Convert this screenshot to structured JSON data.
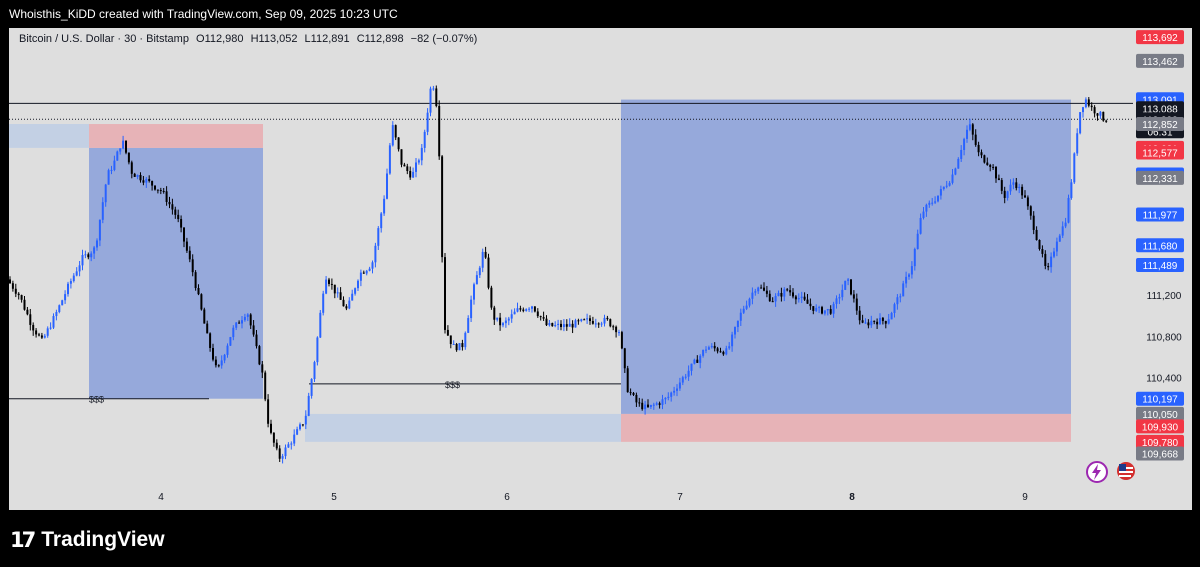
{
  "header": {
    "title": "Whoisthis_KiDD created with TradingView.com, Sep 09, 2025 10:23 UTC"
  },
  "legend": {
    "symbol": "Bitcoin / U.S. Dollar · 30 · Bitstamp",
    "open": "O112,980",
    "high": "H113,052",
    "low": "L112,891",
    "close": "C112,898",
    "change": "−82 (−0.07%)"
  },
  "brand": {
    "name": "TradingView"
  },
  "chart_data": {
    "type": "candlestick",
    "symbol": "BTCUSD",
    "interval": "30",
    "exchange": "Bitstamp",
    "x_tick_labels": [
      {
        "label": "4",
        "t": 152
      },
      {
        "label": "5",
        "t": 325
      },
      {
        "label": "6",
        "t": 498
      },
      {
        "label": "7",
        "t": 671
      },
      {
        "label": "8",
        "t": 843
      },
      {
        "label": "9",
        "t": 1016
      }
    ],
    "y_tick_labels": [
      111200,
      110800,
      110400
    ],
    "ylim": [
      109450,
      113780
    ],
    "candle_colors": {
      "up": "#2962ff",
      "down": "#000000"
    },
    "price_path": [
      [
        0,
        111350
      ],
      [
        12,
        111200
      ],
      [
        25,
        110900
      ],
      [
        35,
        110750
      ],
      [
        48,
        111000
      ],
      [
        62,
        111300
      ],
      [
        75,
        111550
      ],
      [
        88,
        111650
      ],
      [
        100,
        112350
      ],
      [
        108,
        112500
      ],
      [
        115,
        112700
      ],
      [
        125,
        112380
      ],
      [
        140,
        112300
      ],
      [
        155,
        112200
      ],
      [
        170,
        111950
      ],
      [
        185,
        111450
      ],
      [
        200,
        110800
      ],
      [
        210,
        110450
      ],
      [
        225,
        110850
      ],
      [
        240,
        111050
      ],
      [
        255,
        110450
      ],
      [
        262,
        109900
      ],
      [
        272,
        109620
      ],
      [
        285,
        109800
      ],
      [
        298,
        110000
      ],
      [
        308,
        110600
      ],
      [
        318,
        111400
      ],
      [
        330,
        111200
      ],
      [
        340,
        111050
      ],
      [
        352,
        111400
      ],
      [
        365,
        111500
      ],
      [
        378,
        112200
      ],
      [
        385,
        112850
      ],
      [
        395,
        112450
      ],
      [
        405,
        112350
      ],
      [
        415,
        112600
      ],
      [
        425,
        113300
      ],
      [
        431,
        112950
      ],
      [
        437,
        110900
      ],
      [
        446,
        110700
      ],
      [
        455,
        110700
      ],
      [
        465,
        111200
      ],
      [
        477,
        111650
      ],
      [
        485,
        111000
      ],
      [
        495,
        110900
      ],
      [
        510,
        111050
      ],
      [
        525,
        111100
      ],
      [
        540,
        110900
      ],
      [
        560,
        110900
      ],
      [
        580,
        110950
      ],
      [
        600,
        110950
      ],
      [
        612,
        110850
      ],
      [
        620,
        110300
      ],
      [
        630,
        110150
      ],
      [
        640,
        110100
      ],
      [
        660,
        110200
      ],
      [
        680,
        110450
      ],
      [
        700,
        110700
      ],
      [
        720,
        110650
      ],
      [
        735,
        111050
      ],
      [
        750,
        111300
      ],
      [
        765,
        111150
      ],
      [
        780,
        111250
      ],
      [
        795,
        111150
      ],
      [
        810,
        111050
      ],
      [
        825,
        111050
      ],
      [
        840,
        111350
      ],
      [
        855,
        110900
      ],
      [
        865,
        110950
      ],
      [
        880,
        110950
      ],
      [
        895,
        111250
      ],
      [
        905,
        111500
      ],
      [
        915,
        112000
      ],
      [
        930,
        112150
      ],
      [
        945,
        112350
      ],
      [
        955,
        112650
      ],
      [
        962,
        112850
      ],
      [
        972,
        112550
      ],
      [
        985,
        112450
      ],
      [
        997,
        112150
      ],
      [
        1007,
        112300
      ],
      [
        1017,
        112150
      ],
      [
        1027,
        111850
      ],
      [
        1040,
        111400
      ],
      [
        1050,
        111750
      ],
      [
        1058,
        111900
      ],
      [
        1065,
        112350
      ],
      [
        1072,
        112950
      ],
      [
        1078,
        113100
      ],
      [
        1085,
        113000
      ],
      [
        1092,
        112950
      ],
      [
        1097,
        112898
      ]
    ],
    "horizontal_lines": [
      {
        "kind": "solid",
        "price": 113052,
        "label": ""
      },
      {
        "kind": "dotted",
        "price": 112898,
        "label": ""
      },
      {
        "kind": "segment",
        "price": 110197,
        "t_start": 0,
        "t_end": 200,
        "label": "$$$"
      },
      {
        "kind": "segment",
        "price": 110340,
        "t_start": 300,
        "t_end": 612,
        "label": "$$$"
      }
    ],
    "position_tools": [
      {
        "entry": 112621,
        "stop": 112852,
        "target": 110197,
        "t_start": 80,
        "t_end": 254,
        "side": "short"
      },
      {
        "entry": 110050,
        "stop": 109780,
        "target": 113088,
        "t_start": 612,
        "t_end": 1062,
        "side": "long"
      }
    ],
    "zones": [
      {
        "price_top": 112852,
        "price_bottom": 112621,
        "t_start": 0,
        "t_end": 80
      },
      {
        "price_top": 110050,
        "price_bottom": 109780,
        "t_start": 296,
        "t_end": 612
      }
    ],
    "axis_badges": [
      {
        "text": "113,692",
        "price": 113692,
        "color": "#f23645"
      },
      {
        "text": "113,462",
        "price": 113462,
        "color": "#787b86"
      },
      {
        "text": "113,091",
        "price": 113091,
        "color": "#2962ff"
      },
      {
        "text": "113,088",
        "price": 113004,
        "color": "#131722"
      },
      {
        "text": "112,898",
        "price": 112898,
        "color": "#131722",
        "sub": "06:31"
      },
      {
        "text": "112,852",
        "price": 112852,
        "color": "#787b86"
      },
      {
        "text": "112,621",
        "price": 112621,
        "color": "#f23645"
      },
      {
        "text": "112,577",
        "price": 112577,
        "color": "#f23645"
      },
      {
        "text": "112,364",
        "price": 112364,
        "color": "#2962ff"
      },
      {
        "text": "112,331",
        "price": 112331,
        "color": "#787b86"
      },
      {
        "text": "111,977",
        "price": 111977,
        "color": "#2962ff"
      },
      {
        "text": "111,680",
        "price": 111680,
        "color": "#2962ff"
      },
      {
        "text": "111,489",
        "price": 111489,
        "color": "#2962ff"
      },
      {
        "text": "110,197",
        "price": 110197,
        "color": "#2962ff"
      },
      {
        "text": "110,050",
        "price": 110050,
        "color": "#787b86"
      },
      {
        "text": "109,930",
        "price": 109930,
        "color": "#f23645"
      },
      {
        "text": "109,780",
        "price": 109780,
        "color": "#f23645"
      },
      {
        "text": "109,668",
        "price": 109668,
        "color": "#787b86"
      }
    ]
  }
}
